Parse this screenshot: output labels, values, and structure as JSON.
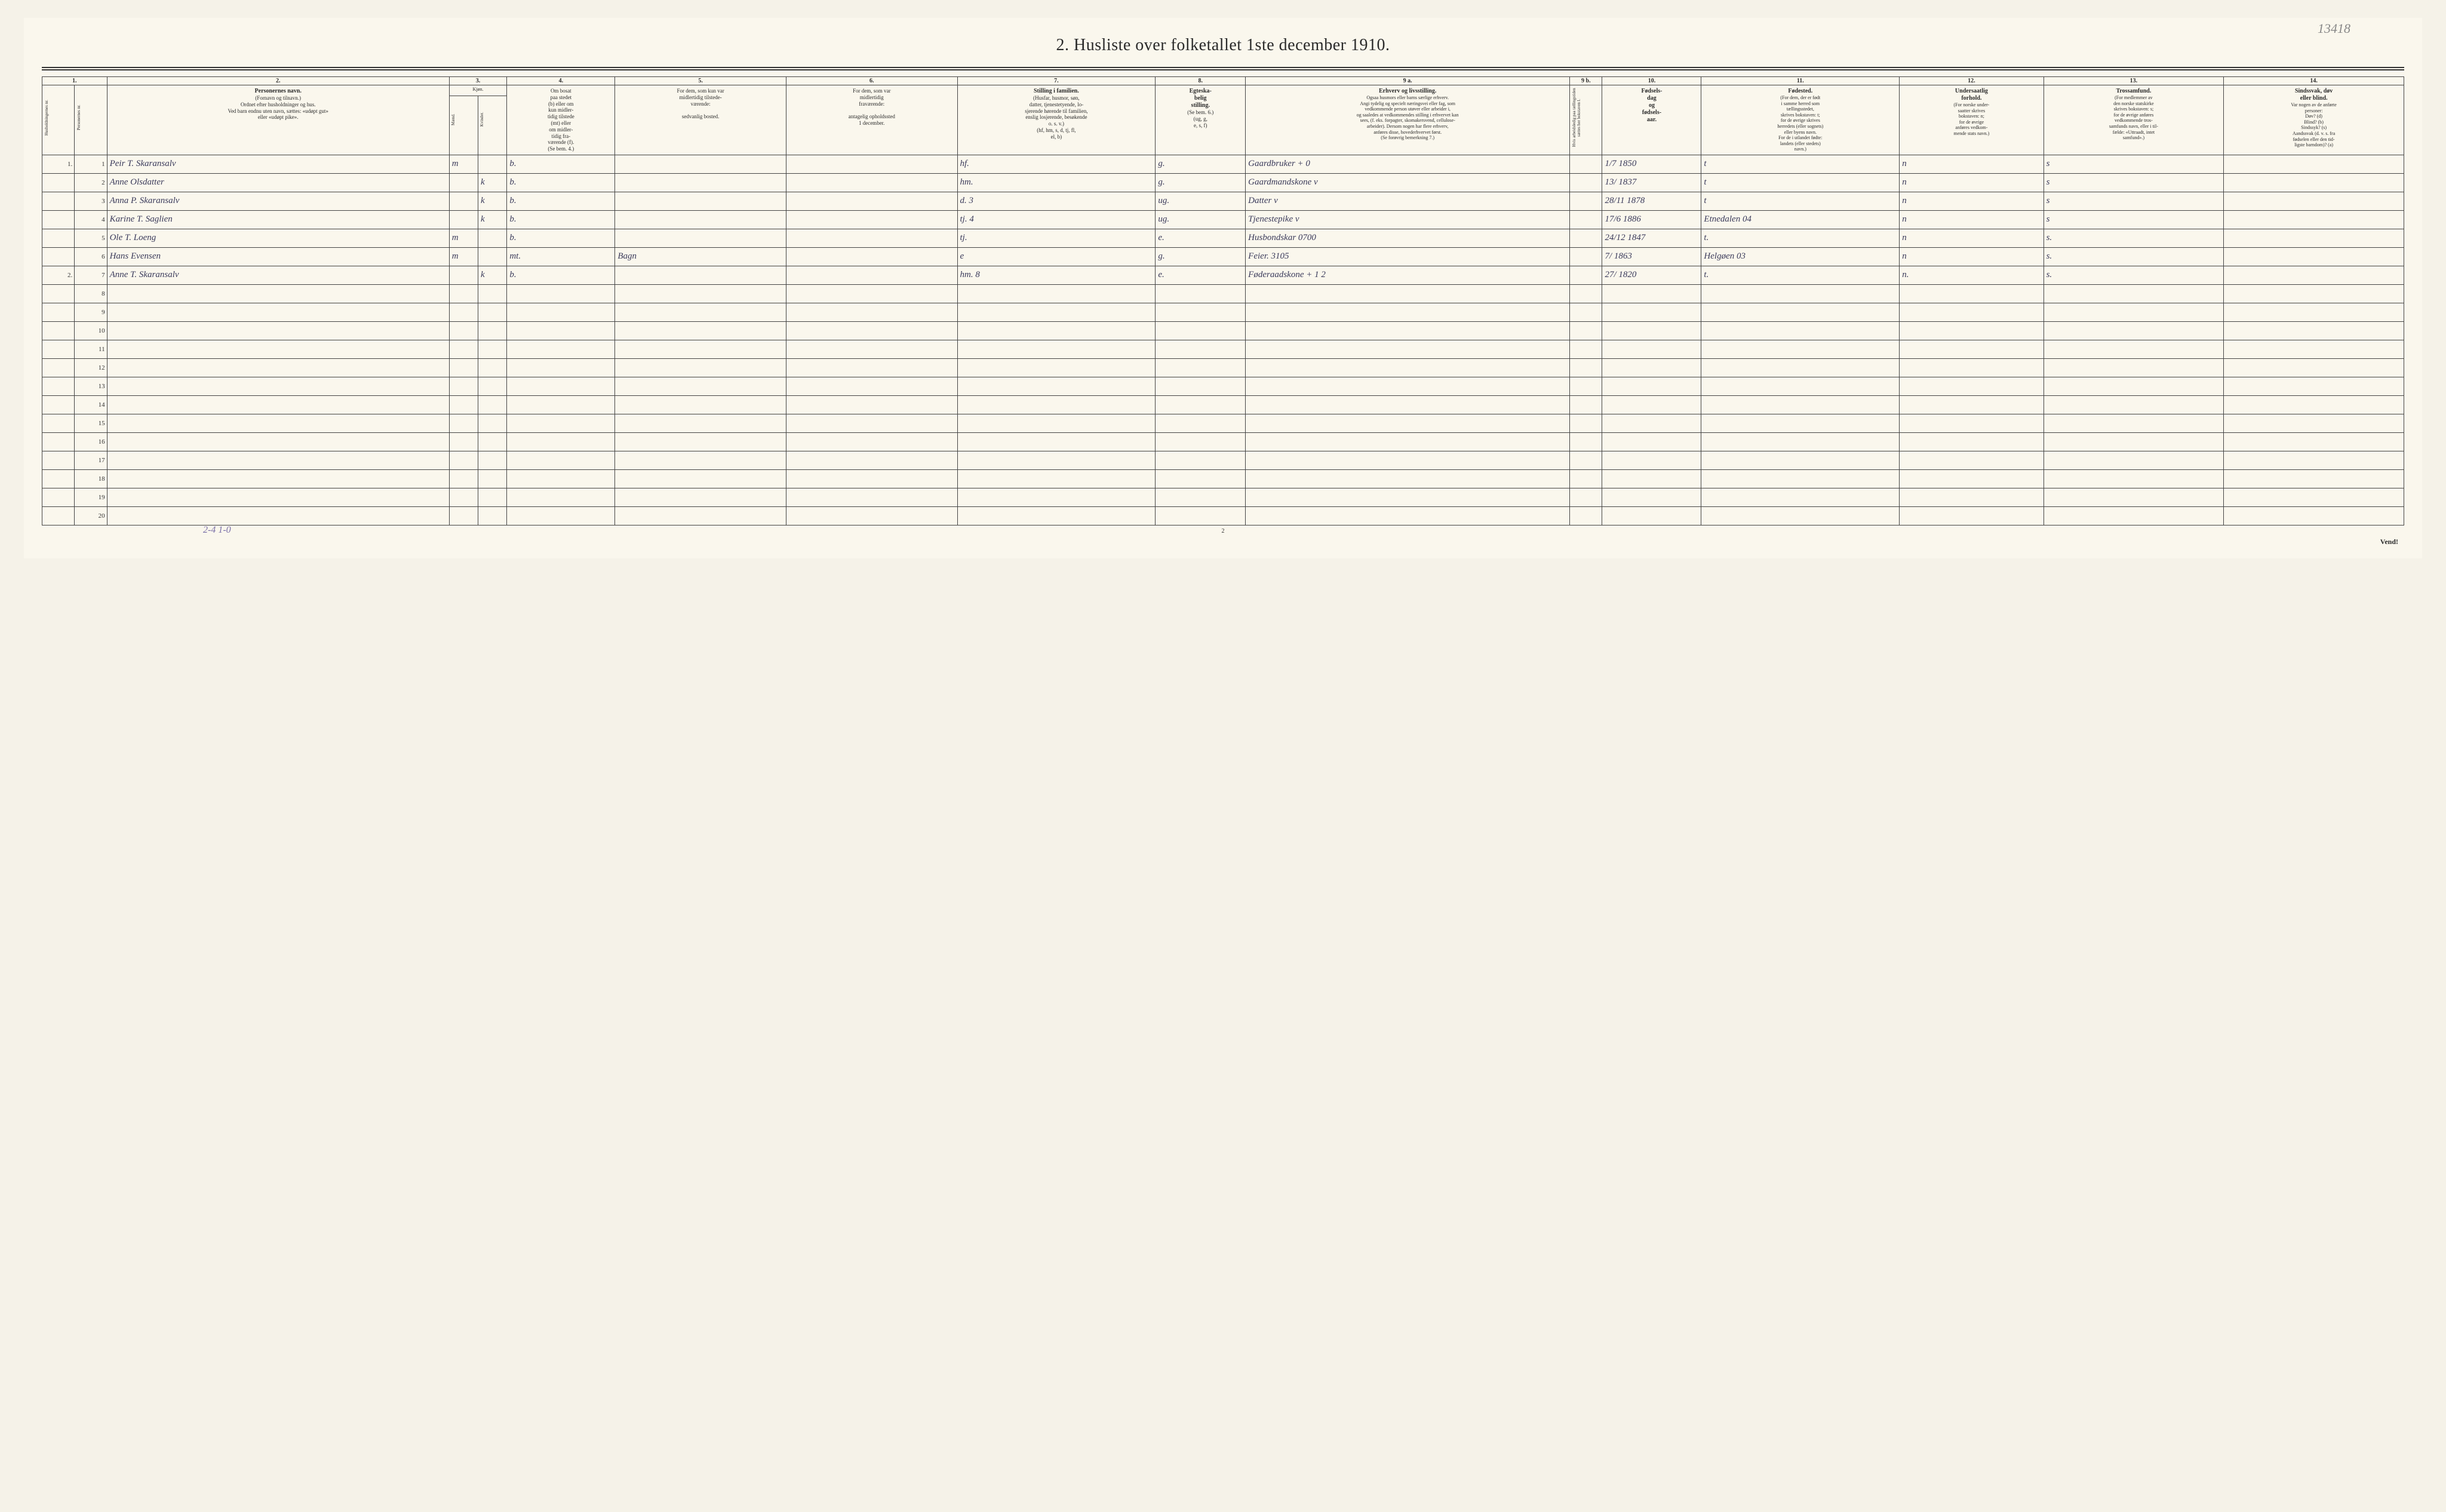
{
  "annotations": {
    "top_right": "13418",
    "footer_hand": "2-4   1-0"
  },
  "title": "2.  Husliste over folketallet 1ste december 1910.",
  "page_number": "2",
  "vend": "Vend!",
  "col_numbers": [
    "1.",
    "2.",
    "3.",
    "4.",
    "5.",
    "6.",
    "7.",
    "8.",
    "9 a.",
    "9 b.",
    "10.",
    "11.",
    "12.",
    "13.",
    "14."
  ],
  "headers": {
    "c1a": "Husholdningernes nr.",
    "c1b": "Personernes nr.",
    "c2": {
      "bold": "Personernes navn.",
      "lines": "(Fornavn og tilnavn.)\nOrdnet efter husholdninger og hus.\nVed barn endnu uten navn, sættes: «udøpt gut»\neller «udøpt pike»."
    },
    "c3": {
      "top": "Kjøn.",
      "m": "Mænd.",
      "k": "Kvinder.",
      "bot": "m. | k."
    },
    "c4": "Om bosat\npaa stedet\n(b) eller om\nkun midler-\ntidig tilstede\n(mt) eller\nom midler-\ntidig fra-\nværende (f).\n(Se bem. 4.)",
    "c5": "For dem, som kun var\nmidlertidig tilstede-\nværende:\n\nsedvanlig bosted.",
    "c6": "For dem, som var\nmidlertidig\nfraværende:\n\nantagelig opholdssted\n1 december.",
    "c7": {
      "bold": "Stilling i familien.",
      "lines": "(Husfar, husmor, søn,\ndatter, tjenestetyende, lo-\nsjerende hørende til familien,\nenslig losjerende, besøkende\no. s. v.)\n(hf, hm, s, d, tj, fl,\nel, b)"
    },
    "c8": {
      "bold": "Egteska-\nbelig\nstilling.",
      "lines": "(Se bem. 6.)\n(ug, g,\ne, s, f)"
    },
    "c9a": {
      "bold": "Erhverv og livsstilling.",
      "lines": "Ogsaa husmors eller barns særlige erhverv.\nAngi tydelig og specielt næringsvei eller fag, som\nvedkommende person utøver eller arbeider i,\nog saaledes at vedkommendes stilling i erhvervet kan\nsees, (f. eks. forpagter, skomakersvend, cellulose-\narbeider). Dersom nogen har flere erhverv,\nanføres disse, hovederhvervet først.\n(Se forøvrig bemerkning 7.)"
    },
    "c9b": "Hvis arbeidsledig\npaa tællingstiden sættes\nher bokstaven l.",
    "c10": {
      "bold": "Fødsels-\ndag\nog\nfødsels-\naar."
    },
    "c11": {
      "bold": "Fødested.",
      "lines": "(For dem, der er født\ni samme herred som\ntællingsstedet,\nskrives bokstaven: t;\nfor de øvrige skrives\nherredets (eller sognets)\neller byens navn.\nFor de i utlandet fødte:\nlandets (eller stedets)\nnavn.)"
    },
    "c12": {
      "bold": "Undersaatlig\nforhold.",
      "lines": "(For norske under-\nsaatter skrives\nbokstaven: n;\nfor de øvrige\nanføres vedkom-\nmende stats navn.)"
    },
    "c13": {
      "bold": "Trossamfund.",
      "lines": "(For medlemmer av\nden norske statskirke\nskrives bokstaven: s;\nfor de øvrige anføres\nvedkommende tros-\nsamfunds navn, eller i til-\nfælde: «Uttraadt, intet\nsamfund».)"
    },
    "c14": {
      "bold": "Sindssvak, døv\neller blind.",
      "lines": "Var nogen av de anførte\npersoner:\nDøv?        (d)\nBlind?      (b)\nSindssyk? (s)\nAandssvak (d. v. s. fra\nfødselen eller den tid-\nligste barndom)? (a)"
    }
  },
  "rows": [
    {
      "hnr": "1.",
      "pnr": "1",
      "name": "Peir T. Skaransalv",
      "m": "m",
      "k": "",
      "res": "b.",
      "c5": "",
      "c6": "",
      "fam": "hf.",
      "egt": "g.",
      "erh": "Gaardbruker     + 0",
      "c9b": "",
      "dob": "1/7 1850",
      "fst": "t",
      "und": "n",
      "tro": "s",
      "c14": ""
    },
    {
      "hnr": "",
      "pnr": "2",
      "name": "Anne Olsdatter",
      "m": "",
      "k": "k",
      "res": "b.",
      "c5": "",
      "c6": "",
      "fam": "hm.",
      "egt": "g.",
      "erh": "Gaardmandskone    v",
      "c9b": "",
      "dob": "13/ 1837",
      "fst": "t",
      "und": "n",
      "tro": "s",
      "c14": ""
    },
    {
      "hnr": "",
      "pnr": "3",
      "name": "Anna P. Skaransalv",
      "m": "",
      "k": "k",
      "res": "b.",
      "c5": "",
      "c6": "",
      "fam": "d.        3",
      "egt": "ug.",
      "erh": "Datter             v",
      "c9b": "",
      "dob": "28/11 1878",
      "fst": "t",
      "und": "n",
      "tro": "s",
      "c14": ""
    },
    {
      "hnr": "",
      "pnr": "4",
      "name": "Karine T. Saglien",
      "m": "",
      "k": "k",
      "res": "b.",
      "c5": "",
      "c6": "",
      "fam": "tj.       4",
      "egt": "ug.",
      "erh": "Tjenestepike      v",
      "c9b": "",
      "dob": "17/6 1886",
      "fst": "Etnedalen 04",
      "und": "n",
      "tro": "s",
      "c14": ""
    },
    {
      "hnr": "",
      "pnr": "5",
      "name": "Ole T. Loeng",
      "m": "m",
      "k": "",
      "res": "b.",
      "c5": "",
      "c6": "",
      "fam": "tj.",
      "egt": "e.",
      "erh": "Husbondskar   0700",
      "c9b": "",
      "dob": "24/12 1847",
      "fst": "t.",
      "und": "n",
      "tro": "s.",
      "c14": ""
    },
    {
      "hnr": "",
      "pnr": "6",
      "name": "Hans Evensen",
      "m": "m",
      "k": "",
      "res": "mt.",
      "c5": "Bagn",
      "c6": "",
      "fam": "e",
      "egt": "g.",
      "erh": "Feier.         3105",
      "c9b": "",
      "dob": "7/ 1863",
      "fst": "Helgøen 03",
      "und": "n",
      "tro": "s.",
      "c14": ""
    },
    {
      "hnr": "2.",
      "pnr": "7",
      "name": "Anne T. Skaransalv",
      "m": "",
      "k": "k",
      "res": "b.",
      "c5": "",
      "c6": "",
      "fam": "hm.      8",
      "egt": "e.",
      "erh": "Føderaadskone  + 1 2",
      "c9b": "",
      "dob": "27/ 1820",
      "fst": "t.",
      "und": "n.",
      "tro": "s.",
      "c14": ""
    },
    {
      "hnr": "",
      "pnr": "8",
      "name": "",
      "m": "",
      "k": "",
      "res": "",
      "c5": "",
      "c6": "",
      "fam": "",
      "egt": "",
      "erh": "",
      "c9b": "",
      "dob": "",
      "fst": "",
      "und": "",
      "tro": "",
      "c14": ""
    },
    {
      "hnr": "",
      "pnr": "9",
      "name": "",
      "m": "",
      "k": "",
      "res": "",
      "c5": "",
      "c6": "",
      "fam": "",
      "egt": "",
      "erh": "",
      "c9b": "",
      "dob": "",
      "fst": "",
      "und": "",
      "tro": "",
      "c14": ""
    },
    {
      "hnr": "",
      "pnr": "10",
      "name": "",
      "m": "",
      "k": "",
      "res": "",
      "c5": "",
      "c6": "",
      "fam": "",
      "egt": "",
      "erh": "",
      "c9b": "",
      "dob": "",
      "fst": "",
      "und": "",
      "tro": "",
      "c14": ""
    },
    {
      "hnr": "",
      "pnr": "11",
      "name": "",
      "m": "",
      "k": "",
      "res": "",
      "c5": "",
      "c6": "",
      "fam": "",
      "egt": "",
      "erh": "",
      "c9b": "",
      "dob": "",
      "fst": "",
      "und": "",
      "tro": "",
      "c14": ""
    },
    {
      "hnr": "",
      "pnr": "12",
      "name": "",
      "m": "",
      "k": "",
      "res": "",
      "c5": "",
      "c6": "",
      "fam": "",
      "egt": "",
      "erh": "",
      "c9b": "",
      "dob": "",
      "fst": "",
      "und": "",
      "tro": "",
      "c14": ""
    },
    {
      "hnr": "",
      "pnr": "13",
      "name": "",
      "m": "",
      "k": "",
      "res": "",
      "c5": "",
      "c6": "",
      "fam": "",
      "egt": "",
      "erh": "",
      "c9b": "",
      "dob": "",
      "fst": "",
      "und": "",
      "tro": "",
      "c14": ""
    },
    {
      "hnr": "",
      "pnr": "14",
      "name": "",
      "m": "",
      "k": "",
      "res": "",
      "c5": "",
      "c6": "",
      "fam": "",
      "egt": "",
      "erh": "",
      "c9b": "",
      "dob": "",
      "fst": "",
      "und": "",
      "tro": "",
      "c14": ""
    },
    {
      "hnr": "",
      "pnr": "15",
      "name": "",
      "m": "",
      "k": "",
      "res": "",
      "c5": "",
      "c6": "",
      "fam": "",
      "egt": "",
      "erh": "",
      "c9b": "",
      "dob": "",
      "fst": "",
      "und": "",
      "tro": "",
      "c14": ""
    },
    {
      "hnr": "",
      "pnr": "16",
      "name": "",
      "m": "",
      "k": "",
      "res": "",
      "c5": "",
      "c6": "",
      "fam": "",
      "egt": "",
      "erh": "",
      "c9b": "",
      "dob": "",
      "fst": "",
      "und": "",
      "tro": "",
      "c14": ""
    },
    {
      "hnr": "",
      "pnr": "17",
      "name": "",
      "m": "",
      "k": "",
      "res": "",
      "c5": "",
      "c6": "",
      "fam": "",
      "egt": "",
      "erh": "",
      "c9b": "",
      "dob": "",
      "fst": "",
      "und": "",
      "tro": "",
      "c14": ""
    },
    {
      "hnr": "",
      "pnr": "18",
      "name": "",
      "m": "",
      "k": "",
      "res": "",
      "c5": "",
      "c6": "",
      "fam": "",
      "egt": "",
      "erh": "",
      "c9b": "",
      "dob": "",
      "fst": "",
      "und": "",
      "tro": "",
      "c14": ""
    },
    {
      "hnr": "",
      "pnr": "19",
      "name": "",
      "m": "",
      "k": "",
      "res": "",
      "c5": "",
      "c6": "",
      "fam": "",
      "egt": "",
      "erh": "",
      "c9b": "",
      "dob": "",
      "fst": "",
      "und": "",
      "tro": "",
      "c14": ""
    },
    {
      "hnr": "",
      "pnr": "20",
      "name": "",
      "m": "",
      "k": "",
      "res": "",
      "c5": "",
      "c6": "",
      "fam": "",
      "egt": "",
      "erh": "",
      "c9b": "",
      "dob": "",
      "fst": "",
      "und": "",
      "tro": "",
      "c14": ""
    }
  ],
  "styling": {
    "background_color": "#faf7ed",
    "border_color": "#444444",
    "text_color": "#2a2a2a",
    "handwriting_color": "#3a3a5a",
    "annotation_color": "#888888",
    "footer_hand_color": "#7a6fa8",
    "title_fontsize": 28,
    "header_fontsize": 9,
    "data_fontsize": 15
  }
}
